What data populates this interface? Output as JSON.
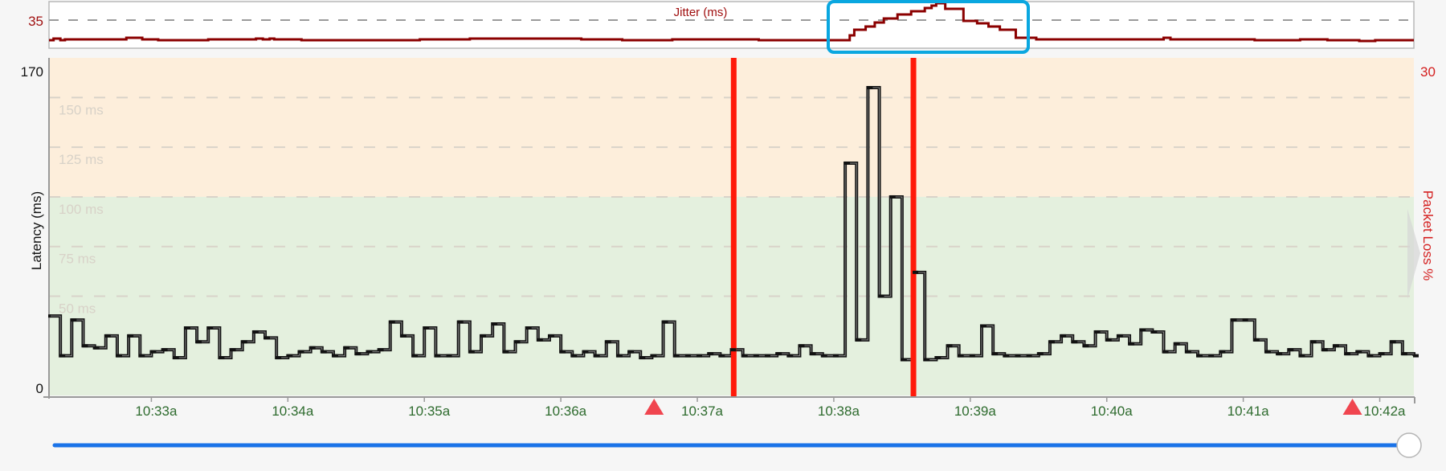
{
  "jitter_panel": {
    "title": "Jitter (ms)",
    "reference_label": "35",
    "color": "#8b0000",
    "chart_data": {
      "type": "line",
      "step": true,
      "title": "Jitter (ms)",
      "reference_line": 35,
      "points": [
        [
          "10:32:15",
          5
        ],
        [
          "10:32:17",
          7
        ],
        [
          "10:32:20",
          5
        ],
        [
          "10:32:22",
          6
        ],
        [
          "10:32:49",
          8
        ],
        [
          "10:32:56",
          6
        ],
        [
          "10:33:03",
          5
        ],
        [
          "10:33:25",
          6
        ],
        [
          "10:33:46",
          7
        ],
        [
          "10:33:49",
          6
        ],
        [
          "10:33:52",
          7
        ],
        [
          "10:33:54",
          6
        ],
        [
          "10:34:06",
          5
        ],
        [
          "10:34:58",
          6
        ],
        [
          "10:35:20",
          7
        ],
        [
          "10:36:09",
          6
        ],
        [
          "10:36:27",
          5
        ],
        [
          "10:36:49",
          6
        ],
        [
          "10:37:27",
          5
        ],
        [
          "10:38:07",
          11
        ],
        [
          "10:38:09",
          18
        ],
        [
          "10:38:14",
          22
        ],
        [
          "10:38:18",
          27
        ],
        [
          "10:38:22",
          32
        ],
        [
          "10:38:28",
          37
        ],
        [
          "10:38:34",
          41
        ],
        [
          "10:38:40",
          45
        ],
        [
          "10:38:43",
          48
        ],
        [
          "10:38:45",
          51
        ],
        [
          "10:38:49",
          44
        ],
        [
          "10:38:57",
          29
        ],
        [
          "10:39:03",
          26
        ],
        [
          "10:39:08",
          22
        ],
        [
          "10:39:13",
          18
        ],
        [
          "10:39:20",
          8
        ],
        [
          "10:39:29",
          6
        ],
        [
          "10:40:25",
          8
        ],
        [
          "10:40:28",
          6
        ],
        [
          "10:41:05",
          5
        ],
        [
          "10:41:25",
          6
        ],
        [
          "10:41:37",
          5
        ],
        [
          "10:41:51",
          4
        ],
        [
          "10:41:58",
          5
        ],
        [
          "10:42:15",
          5
        ]
      ]
    }
  },
  "main_chart": {
    "chart_data": {
      "type": "line",
      "step": true,
      "ylabel": "Latency (ms)",
      "y2label": "Packet Loss %",
      "ylim": [
        0,
        170
      ],
      "y_tick_labels": [
        "0",
        "170"
      ],
      "y2_tick_labels": [
        "30"
      ],
      "x_tick_labels": [
        "10:33a",
        "10:34a",
        "10:35a",
        "10:36a",
        "10:37a",
        "10:38a",
        "10:39a",
        "10:40a",
        "10:41a",
        "10:42a"
      ],
      "x_ticks": [
        "10:33:00",
        "10:34:00",
        "10:35:00",
        "10:36:00",
        "10:37:00",
        "10:38:00",
        "10:39:00",
        "10:40:00",
        "10:41:00",
        "10:42:00"
      ],
      "xlim": [
        "10:32:15",
        "10:42:15"
      ],
      "threshold_lines": [
        {
          "value": 150,
          "label": "150 ms"
        },
        {
          "value": 125,
          "label": "125 ms"
        },
        {
          "value": 100,
          "label": "100 ms"
        },
        {
          "value": 75,
          "label": "75 ms"
        },
        {
          "value": 50,
          "label": "50 ms"
        }
      ],
      "bands": [
        {
          "from": 100,
          "to": 170,
          "color": "#fdeedb"
        },
        {
          "from": 0,
          "to": 100,
          "color": "#e4f0de"
        }
      ],
      "packet_loss_markers": [
        "10:37:16",
        "10:38:35"
      ],
      "event_markers": [
        "10:36:41",
        "10:41:48"
      ],
      "series_color": "#111111",
      "loss_color": "#ff1a0a",
      "event_color": "#f0454f",
      "points": [
        [
          "10:32:15",
          40
        ],
        [
          "10:32:20",
          20
        ],
        [
          "10:32:25",
          38
        ],
        [
          "10:32:30",
          25
        ],
        [
          "10:32:35",
          24
        ],
        [
          "10:32:40",
          30
        ],
        [
          "10:32:45",
          20
        ],
        [
          "10:32:50",
          30
        ],
        [
          "10:32:55",
          20
        ],
        [
          "10:33:00",
          22
        ],
        [
          "10:33:05",
          23
        ],
        [
          "10:33:10",
          19
        ],
        [
          "10:33:15",
          34
        ],
        [
          "10:33:20",
          27
        ],
        [
          "10:33:25",
          34
        ],
        [
          "10:33:30",
          19
        ],
        [
          "10:33:35",
          23
        ],
        [
          "10:33:40",
          27
        ],
        [
          "10:33:45",
          32
        ],
        [
          "10:33:50",
          29
        ],
        [
          "10:33:55",
          19
        ],
        [
          "10:34:00",
          20
        ],
        [
          "10:34:05",
          22
        ],
        [
          "10:34:10",
          24
        ],
        [
          "10:34:15",
          22
        ],
        [
          "10:34:20",
          20
        ],
        [
          "10:34:25",
          24
        ],
        [
          "10:34:30",
          21
        ],
        [
          "10:34:35",
          22
        ],
        [
          "10:34:40",
          23
        ],
        [
          "10:34:45",
          37
        ],
        [
          "10:34:50",
          30
        ],
        [
          "10:34:55",
          20
        ],
        [
          "10:35:00",
          34
        ],
        [
          "10:35:05",
          20
        ],
        [
          "10:35:10",
          20
        ],
        [
          "10:35:15",
          37
        ],
        [
          "10:35:20",
          22
        ],
        [
          "10:35:25",
          30
        ],
        [
          "10:35:30",
          36
        ],
        [
          "10:35:35",
          22
        ],
        [
          "10:35:40",
          27
        ],
        [
          "10:35:45",
          34
        ],
        [
          "10:35:50",
          28
        ],
        [
          "10:35:55",
          30
        ],
        [
          "10:36:00",
          22
        ],
        [
          "10:36:05",
          20
        ],
        [
          "10:36:10",
          22
        ],
        [
          "10:36:15",
          20
        ],
        [
          "10:36:20",
          27
        ],
        [
          "10:36:25",
          20
        ],
        [
          "10:36:30",
          22
        ],
        [
          "10:36:35",
          19
        ],
        [
          "10:36:40",
          20
        ],
        [
          "10:36:45",
          37
        ],
        [
          "10:36:50",
          20
        ],
        [
          "10:36:55",
          20
        ],
        [
          "10:37:00",
          20
        ],
        [
          "10:37:05",
          21
        ],
        [
          "10:37:10",
          20
        ],
        [
          "10:37:15",
          23
        ],
        [
          "10:37:20",
          20
        ],
        [
          "10:37:25",
          20
        ],
        [
          "10:37:30",
          20
        ],
        [
          "10:37:35",
          21
        ],
        [
          "10:37:40",
          20
        ],
        [
          "10:37:45",
          25
        ],
        [
          "10:37:50",
          21
        ],
        [
          "10:37:55",
          20
        ],
        [
          "10:38:00",
          20
        ],
        [
          "10:38:05",
          117
        ],
        [
          "10:38:10",
          28
        ],
        [
          "10:38:15",
          155
        ],
        [
          "10:38:20",
          50
        ],
        [
          "10:38:25",
          100
        ],
        [
          "10:38:30",
          18
        ],
        [
          "10:38:35",
          62
        ],
        [
          "10:38:40",
          18
        ],
        [
          "10:38:45",
          19
        ],
        [
          "10:38:50",
          25
        ],
        [
          "10:38:55",
          20
        ],
        [
          "10:39:00",
          20
        ],
        [
          "10:39:05",
          35
        ],
        [
          "10:39:10",
          21
        ],
        [
          "10:39:15",
          20
        ],
        [
          "10:39:20",
          20
        ],
        [
          "10:39:25",
          20
        ],
        [
          "10:39:30",
          21
        ],
        [
          "10:39:35",
          27
        ],
        [
          "10:39:40",
          30
        ],
        [
          "10:39:45",
          27
        ],
        [
          "10:39:50",
          25
        ],
        [
          "10:39:55",
          32
        ],
        [
          "10:40:00",
          28
        ],
        [
          "10:40:05",
          30
        ],
        [
          "10:40:10",
          26
        ],
        [
          "10:40:15",
          33
        ],
        [
          "10:40:20",
          32
        ],
        [
          "10:40:25",
          22
        ],
        [
          "10:40:30",
          26
        ],
        [
          "10:40:35",
          22
        ],
        [
          "10:40:40",
          20
        ],
        [
          "10:40:45",
          20
        ],
        [
          "10:40:50",
          22
        ],
        [
          "10:40:55",
          38
        ],
        [
          "10:41:00",
          38
        ],
        [
          "10:41:05",
          28
        ],
        [
          "10:41:10",
          22
        ],
        [
          "10:41:15",
          21
        ],
        [
          "10:41:20",
          23
        ],
        [
          "10:41:25",
          20
        ],
        [
          "10:41:30",
          27
        ],
        [
          "10:41:35",
          23
        ],
        [
          "10:41:40",
          25
        ],
        [
          "10:41:45",
          21
        ],
        [
          "10:41:50",
          22
        ],
        [
          "10:41:55",
          20
        ],
        [
          "10:42:00",
          21
        ],
        [
          "10:42:05",
          27
        ],
        [
          "10:42:10",
          21
        ],
        [
          "10:42:15",
          20
        ]
      ]
    }
  },
  "timeline_slider": {
    "value_percent": 100,
    "color": "#1a73e8"
  },
  "selection_box_color": "#0aa7e0"
}
